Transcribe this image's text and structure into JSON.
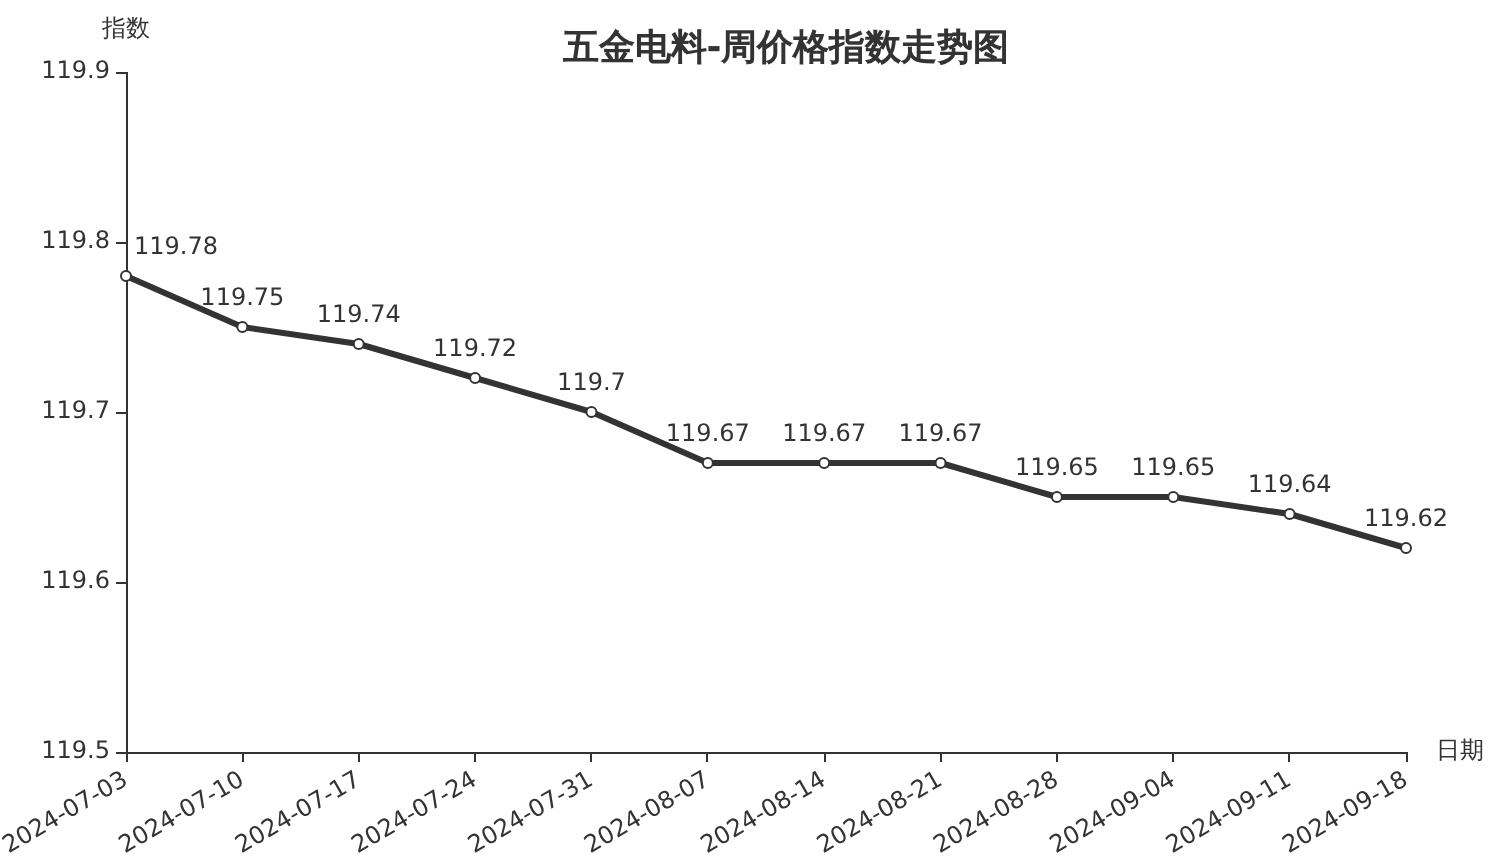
{
  "chart_data": {
    "type": "line",
    "title": "五金电料-周价格指数走势图",
    "xlabel": "日期",
    "ylabel": "指数",
    "categories": [
      "2024-07-03",
      "2024-07-10",
      "2024-07-17",
      "2024-07-24",
      "2024-07-31",
      "2024-08-07",
      "2024-08-14",
      "2024-08-21",
      "2024-08-28",
      "2024-09-04",
      "2024-09-11",
      "2024-09-18"
    ],
    "series": [
      {
        "color": "#333333",
        "values": [
          119.78,
          119.75,
          119.74,
          119.72,
          119.7,
          119.67,
          119.67,
          119.67,
          119.65,
          119.65,
          119.64,
          119.62
        ]
      }
    ],
    "ylim": [
      119.5,
      119.9
    ],
    "yticks": [
      119.5,
      119.6,
      119.7,
      119.8,
      119.9
    ],
    "grid": false,
    "marker": "circle",
    "line_style": "solid",
    "data_labels": true
  }
}
